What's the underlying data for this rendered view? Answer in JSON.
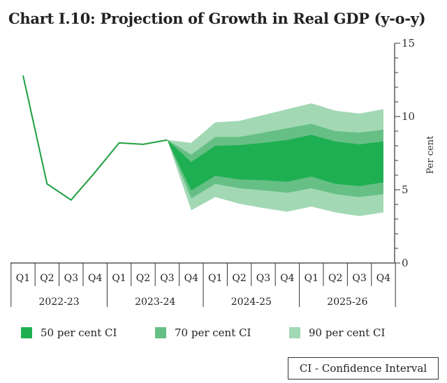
{
  "chart_data": {
    "type": "area",
    "title": "Chart I.10: Projection of Growth in Real GDP (y-o-y)",
    "ylabel": "Per cent",
    "ylim": [
      0,
      15
    ],
    "yticks": [
      "0",
      "5",
      "10",
      "15"
    ],
    "quarters": [
      "Q1",
      "Q2",
      "Q3",
      "Q4",
      "Q1",
      "Q2",
      "Q3",
      "Q4",
      "Q1",
      "Q2",
      "Q3",
      "Q4",
      "Q1",
      "Q2",
      "Q3",
      "Q4"
    ],
    "years": [
      "2022-23",
      "2023-24",
      "2024-25",
      "2025-26"
    ],
    "actual": [
      12.8,
      5.4,
      4.3,
      6.2,
      8.2,
      8.1,
      8.4
    ],
    "fan_start_index": 6,
    "bands": [
      {
        "name": "90 per cent CI",
        "color": "#a3d8b5",
        "upper": [
          8.4,
          8.2,
          9.6,
          9.7,
          10.1,
          10.5,
          10.9,
          10.4,
          10.2,
          10.5
        ],
        "lower": [
          8.4,
          3.6,
          4.5,
          4.05,
          3.75,
          3.5,
          3.85,
          3.45,
          3.2,
          3.45
        ]
      },
      {
        "name": "70 per cent CI",
        "color": "#66c085",
        "upper": [
          8.4,
          7.4,
          8.6,
          8.6,
          8.9,
          9.2,
          9.5,
          9.0,
          8.9,
          9.1
        ],
        "lower": [
          8.4,
          4.4,
          5.4,
          5.1,
          4.95,
          4.8,
          5.1,
          4.7,
          4.5,
          4.7
        ]
      },
      {
        "name": "50 per cent CI",
        "color": "#1faf53",
        "upper": [
          8.4,
          6.9,
          8.0,
          8.05,
          8.2,
          8.4,
          8.75,
          8.3,
          8.1,
          8.3
        ],
        "lower": [
          8.4,
          4.95,
          5.95,
          5.7,
          5.65,
          5.55,
          5.9,
          5.4,
          5.25,
          5.5
        ]
      }
    ],
    "line_color": "#1f9e3f",
    "grid": false,
    "legend_position": "bottom",
    "note": "CI - Confidence Interval"
  }
}
